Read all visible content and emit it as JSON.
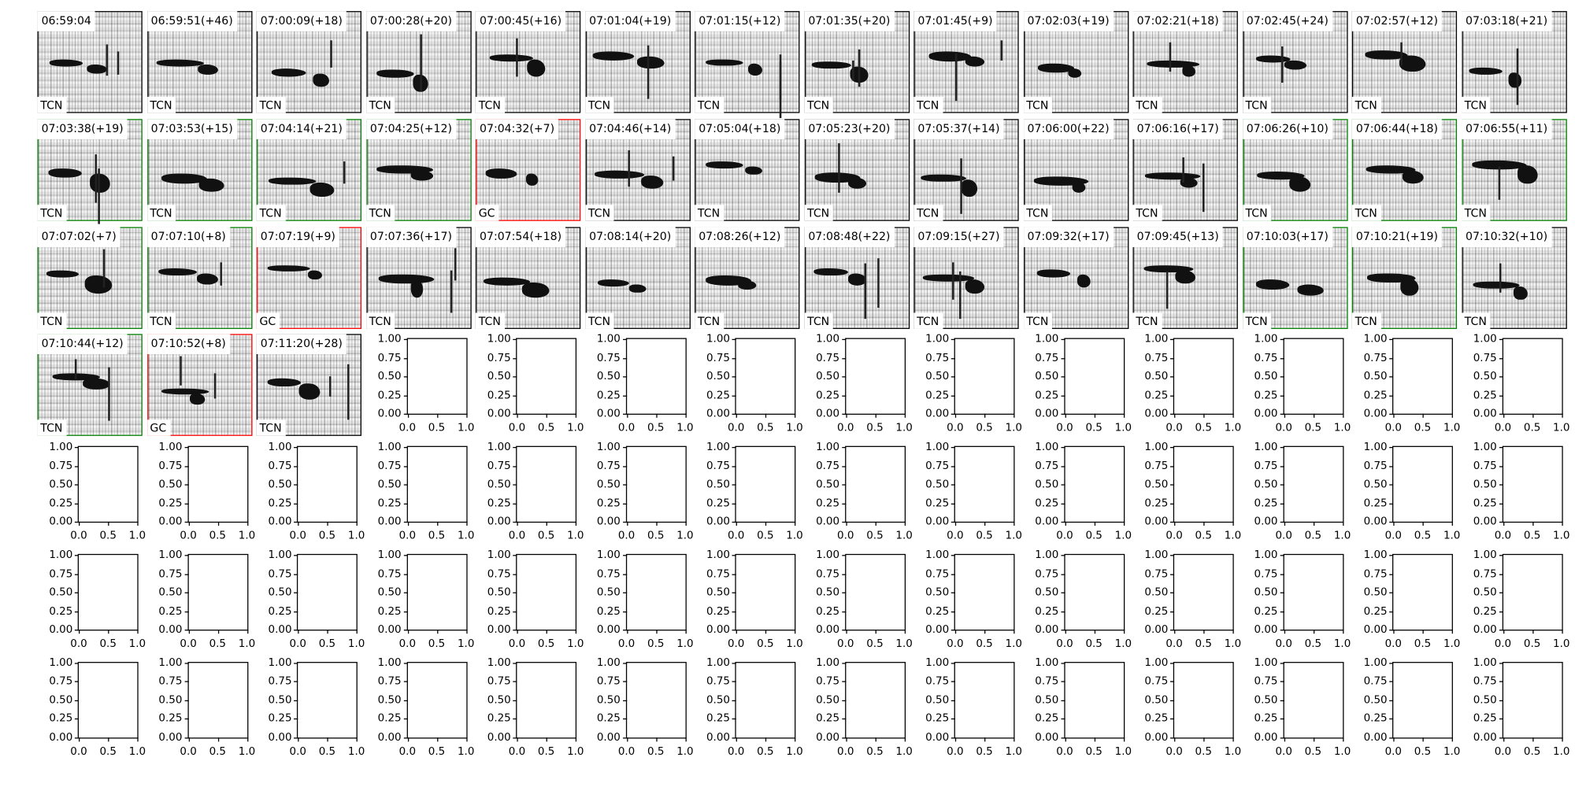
{
  "chart_data": {
    "type": "heatmap",
    "grid_columns": 14,
    "grid_rows": 7,
    "colors": {
      "default_border": "#000000",
      "green_border": "#008000",
      "red_border": "#ff0000"
    },
    "panels": [
      {
        "time": "06:59:04",
        "label": "TCN",
        "border": "#000000"
      },
      {
        "time": "06:59:51(+46)",
        "label": "TCN",
        "border": "#000000"
      },
      {
        "time": "07:00:09(+18)",
        "label": "TCN",
        "border": "#000000"
      },
      {
        "time": "07:00:28(+20)",
        "label": "TCN",
        "border": "#000000"
      },
      {
        "time": "07:00:45(+16)",
        "label": "TCN",
        "border": "#000000"
      },
      {
        "time": "07:01:04(+19)",
        "label": "TCN",
        "border": "#000000"
      },
      {
        "time": "07:01:15(+12)",
        "label": "TCN",
        "border": "#000000"
      },
      {
        "time": "07:01:35(+20)",
        "label": "TCN",
        "border": "#000000"
      },
      {
        "time": "07:01:45(+9)",
        "label": "TCN",
        "border": "#000000"
      },
      {
        "time": "07:02:03(+19)",
        "label": "TCN",
        "border": "#000000"
      },
      {
        "time": "07:02:21(+18)",
        "label": "TCN",
        "border": "#000000"
      },
      {
        "time": "07:02:45(+24)",
        "label": "TCN",
        "border": "#000000"
      },
      {
        "time": "07:02:57(+12)",
        "label": "TCN",
        "border": "#000000"
      },
      {
        "time": "07:03:18(+21)",
        "label": "TCN",
        "border": "#000000"
      },
      {
        "time": "07:03:38(+19)",
        "label": "TCN",
        "border": "#008000"
      },
      {
        "time": "07:03:53(+15)",
        "label": "TCN",
        "border": "#008000"
      },
      {
        "time": "07:04:14(+21)",
        "label": "TCN",
        "border": "#008000"
      },
      {
        "time": "07:04:25(+12)",
        "label": "TCN",
        "border": "#008000"
      },
      {
        "time": "07:04:32(+7)",
        "label": "GC",
        "border": "#ff0000"
      },
      {
        "time": "07:04:46(+14)",
        "label": "TCN",
        "border": "#000000"
      },
      {
        "time": "07:05:04(+18)",
        "label": "TCN",
        "border": "#000000"
      },
      {
        "time": "07:05:23(+20)",
        "label": "TCN",
        "border": "#000000"
      },
      {
        "time": "07:05:37(+14)",
        "label": "TCN",
        "border": "#000000"
      },
      {
        "time": "07:06:00(+22)",
        "label": "TCN",
        "border": "#000000"
      },
      {
        "time": "07:06:16(+17)",
        "label": "TCN",
        "border": "#000000"
      },
      {
        "time": "07:06:26(+10)",
        "label": "TCN",
        "border": "#008000"
      },
      {
        "time": "07:06:44(+18)",
        "label": "TCN",
        "border": "#008000"
      },
      {
        "time": "07:06:55(+11)",
        "label": "TCN",
        "border": "#008000"
      },
      {
        "time": "07:07:02(+7)",
        "label": "TCN",
        "border": "#008000"
      },
      {
        "time": "07:07:10(+8)",
        "label": "TCN",
        "border": "#008000"
      },
      {
        "time": "07:07:19(+9)",
        "label": "GC",
        "border": "#ff0000"
      },
      {
        "time": "07:07:36(+17)",
        "label": "TCN",
        "border": "#000000"
      },
      {
        "time": "07:07:54(+18)",
        "label": "TCN",
        "border": "#000000"
      },
      {
        "time": "07:08:14(+20)",
        "label": "TCN",
        "border": "#000000"
      },
      {
        "time": "07:08:26(+12)",
        "label": "TCN",
        "border": "#000000"
      },
      {
        "time": "07:08:48(+22)",
        "label": "TCN",
        "border": "#000000"
      },
      {
        "time": "07:09:15(+27)",
        "label": "TCN",
        "border": "#000000"
      },
      {
        "time": "07:09:32(+17)",
        "label": "TCN",
        "border": "#000000"
      },
      {
        "time": "07:09:45(+13)",
        "label": "TCN",
        "border": "#000000"
      },
      {
        "time": "07:10:03(+17)",
        "label": "TCN",
        "border": "#008000"
      },
      {
        "time": "07:10:21(+19)",
        "label": "TCN",
        "border": "#008000"
      },
      {
        "time": "07:10:32(+10)",
        "label": "TCN",
        "border": "#000000"
      },
      {
        "time": "07:10:44(+12)",
        "label": "TCN",
        "border": "#008000"
      },
      {
        "time": "07:10:52(+8)",
        "label": "GC",
        "border": "#ff0000"
      },
      {
        "time": "07:11:20(+28)",
        "label": "TCN",
        "border": "#000000"
      }
    ],
    "empty_axes": {
      "xlim": [
        0,
        1
      ],
      "ylim": [
        0,
        1
      ],
      "x_ticks": [
        "0.0",
        "0.5",
        "1.0"
      ],
      "y_ticks": [
        "0.00",
        "0.25",
        "0.50",
        "0.75",
        "1.00"
      ]
    }
  }
}
